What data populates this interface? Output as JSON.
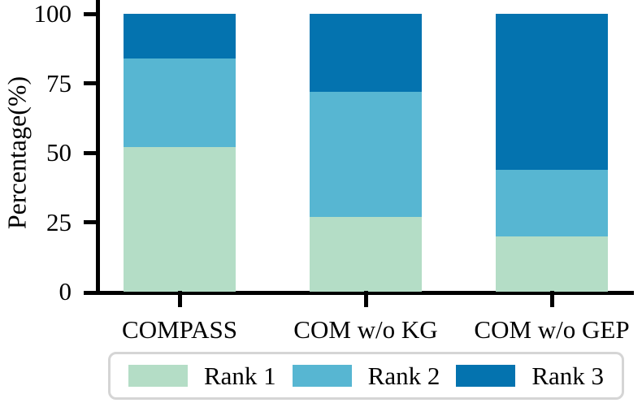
{
  "figure": {
    "background_color": "#ffffff",
    "axis_color": "#000000",
    "legend_border_color": "#d5d5d5"
  },
  "chart_data": {
    "type": "bar",
    "subtype": "stacked-percentage",
    "title": "",
    "xlabel": "",
    "ylabel": "Percentage(%)",
    "categories": [
      "COMPASS",
      "COM w/o KG",
      "COM w/o GEP"
    ],
    "series": [
      {
        "name": "Rank 1",
        "color": "#b4ddc6",
        "values": [
          52,
          27,
          20
        ]
      },
      {
        "name": "Rank 2",
        "color": "#57b6d2",
        "values": [
          32,
          45,
          24
        ]
      },
      {
        "name": "Rank 3",
        "color": "#0473af",
        "values": [
          16,
          28,
          56
        ]
      }
    ],
    "ylim": [
      0,
      100
    ],
    "yticks": [
      0,
      25,
      50,
      75,
      100
    ],
    "grid": false,
    "legend_position": "bottom"
  }
}
